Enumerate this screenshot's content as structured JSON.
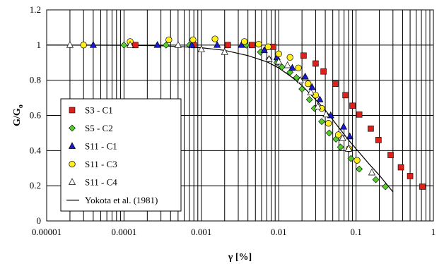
{
  "chart_data": {
    "type": "scatter",
    "xscale": "log",
    "xlim": [
      1e-05,
      1
    ],
    "ylim": [
      0,
      1.2
    ],
    "x_ticks": [
      1e-05,
      0.0001,
      0.001,
      0.01,
      0.1,
      1
    ],
    "x_tick_labels": [
      "0.00001",
      "0.0001",
      "0.001",
      "0.01",
      "0.1",
      "1"
    ],
    "y_ticks": [
      0,
      0.2,
      0.4,
      0.6,
      0.8,
      1,
      1.2
    ],
    "y_tick_labels": [
      "0",
      "0.2",
      "0.4",
      "0.6",
      "0.8",
      "1",
      "1.2"
    ],
    "xlabel_symbol": "γ",
    "xlabel_unit": " [%]",
    "ylabel_main": "G/G",
    "ylabel_sub": "o",
    "grid": "vertical log gridlines; horizontal gridlines at y ticks",
    "legend_position": "lower-left",
    "series": [
      {
        "name": "S3 - C1",
        "marker": "square",
        "color": "#e0201a",
        "points": [
          [
            0.00014,
            1.0
          ],
          [
            0.0008,
            1.0
          ],
          [
            0.0022,
            1.0
          ],
          [
            0.0045,
            1.0
          ],
          [
            0.0085,
            0.99
          ],
          [
            0.021,
            0.94
          ],
          [
            0.03,
            0.895
          ],
          [
            0.038,
            0.85
          ],
          [
            0.054,
            0.78
          ],
          [
            0.073,
            0.715
          ],
          [
            0.09,
            0.655
          ],
          [
            0.11,
            0.605
          ],
          [
            0.155,
            0.525
          ],
          [
            0.195,
            0.46
          ],
          [
            0.28,
            0.375
          ],
          [
            0.38,
            0.305
          ],
          [
            0.5,
            0.255
          ],
          [
            0.72,
            0.195
          ]
        ]
      },
      {
        "name": "S5 - C2",
        "marker": "diamond",
        "color": "#55cc2e",
        "points": [
          [
            0.0001,
            1.0
          ],
          [
            0.00035,
            1.0
          ],
          [
            0.0007,
            1.0
          ],
          [
            0.0038,
            1.0
          ],
          [
            0.0058,
            0.96
          ],
          [
            0.0075,
            0.92
          ],
          [
            0.0095,
            0.9
          ],
          [
            0.011,
            0.875
          ],
          [
            0.014,
            0.845
          ],
          [
            0.017,
            0.815
          ],
          [
            0.02,
            0.75
          ],
          [
            0.025,
            0.69
          ],
          [
            0.029,
            0.64
          ],
          [
            0.036,
            0.565
          ],
          [
            0.045,
            0.5
          ],
          [
            0.055,
            0.465
          ],
          [
            0.063,
            0.42
          ],
          [
            0.086,
            0.355
          ],
          [
            0.11,
            0.295
          ],
          [
            0.18,
            0.235
          ],
          [
            0.24,
            0.195
          ]
        ]
      },
      {
        "name": "S11 - C1",
        "marker": "triangle",
        "color": "#1a1acc",
        "points": [
          [
            4e-05,
            1.0
          ],
          [
            0.00027,
            1.0
          ],
          [
            0.00075,
            1.0
          ],
          [
            0.0016,
            1.0
          ],
          [
            0.0033,
            1.0
          ],
          [
            0.0065,
            0.97
          ],
          [
            0.0095,
            0.93
          ],
          [
            0.015,
            0.87
          ],
          [
            0.022,
            0.82
          ],
          [
            0.027,
            0.76
          ],
          [
            0.034,
            0.69
          ],
          [
            0.047,
            0.6
          ],
          [
            0.069,
            0.535
          ],
          [
            0.083,
            0.48
          ]
        ]
      },
      {
        "name": "S11 - C3",
        "marker": "circle",
        "color": "#ffee1a",
        "points": [
          [
            3e-05,
            1.0
          ],
          [
            0.00012,
            1.02
          ],
          [
            0.00038,
            1.03
          ],
          [
            0.00078,
            1.03
          ],
          [
            0.0015,
            1.035
          ],
          [
            0.0036,
            1.02
          ],
          [
            0.0055,
            1.005
          ],
          [
            0.0073,
            0.99
          ],
          [
            0.01,
            0.95
          ],
          [
            0.014,
            0.93
          ],
          [
            0.018,
            0.87
          ],
          [
            0.024,
            0.78
          ],
          [
            0.03,
            0.715
          ],
          [
            0.036,
            0.64
          ],
          [
            0.044,
            0.555
          ],
          [
            0.059,
            0.49
          ],
          [
            0.081,
            0.41
          ],
          [
            0.103,
            0.345
          ]
        ]
      },
      {
        "name": "S11 - C4",
        "marker": "open-triangle",
        "color": "#ffffff",
        "points": [
          [
            2e-05,
            1.0
          ],
          [
            0.00012,
            1.0
          ],
          [
            0.0005,
            1.0
          ],
          [
            0.001,
            0.975
          ],
          [
            0.002,
            0.96
          ],
          [
            0.0075,
            0.92
          ],
          [
            0.01,
            0.905
          ],
          [
            0.013,
            0.885
          ],
          [
            0.019,
            0.8
          ],
          [
            0.026,
            0.73
          ],
          [
            0.032,
            0.65
          ],
          [
            0.041,
            0.605
          ],
          [
            0.067,
            0.47
          ],
          [
            0.08,
            0.41
          ],
          [
            0.16,
            0.275
          ]
        ]
      }
    ],
    "curve": {
      "name": "Yokota et al. (1981)",
      "points": [
        [
          1e-05,
          1.0
        ],
        [
          0.0001,
          0.999
        ],
        [
          0.0003,
          0.996
        ],
        [
          0.001,
          0.985
        ],
        [
          0.002,
          0.97
        ],
        [
          0.004,
          0.94
        ],
        [
          0.007,
          0.905
        ],
        [
          0.01,
          0.87
        ],
        [
          0.015,
          0.815
        ],
        [
          0.02,
          0.77
        ],
        [
          0.03,
          0.69
        ],
        [
          0.04,
          0.63
        ],
        [
          0.06,
          0.53
        ],
        [
          0.08,
          0.46
        ],
        [
          0.1,
          0.41
        ],
        [
          0.15,
          0.32
        ],
        [
          0.2,
          0.26
        ],
        [
          0.3,
          0.165
        ]
      ]
    }
  }
}
